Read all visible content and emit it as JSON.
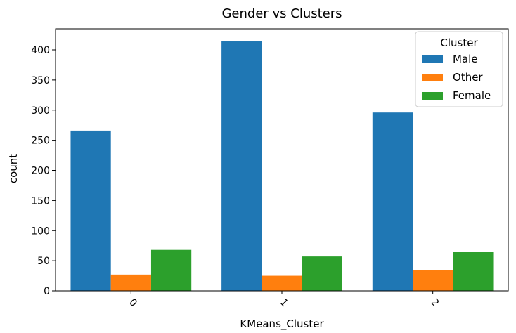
{
  "chart_data": {
    "type": "bar",
    "title": "Gender vs Clusters",
    "xlabel": "KMeans_Cluster",
    "ylabel": "count",
    "categories": [
      "0",
      "1",
      "2"
    ],
    "ylim": [
      0,
      435
    ],
    "yticks": [
      0,
      50,
      100,
      150,
      200,
      250,
      300,
      350,
      400
    ],
    "grid": false,
    "legend": {
      "title": "Cluster",
      "placement": "top-right"
    },
    "series": [
      {
        "name": "Male",
        "color": "#1f77b4",
        "values": [
          266,
          414,
          296
        ]
      },
      {
        "name": "Other",
        "color": "#ff7f0e",
        "values": [
          27,
          25,
          34
        ]
      },
      {
        "name": "Female",
        "color": "#2ca02c",
        "values": [
          68,
          57,
          65
        ]
      }
    ]
  }
}
